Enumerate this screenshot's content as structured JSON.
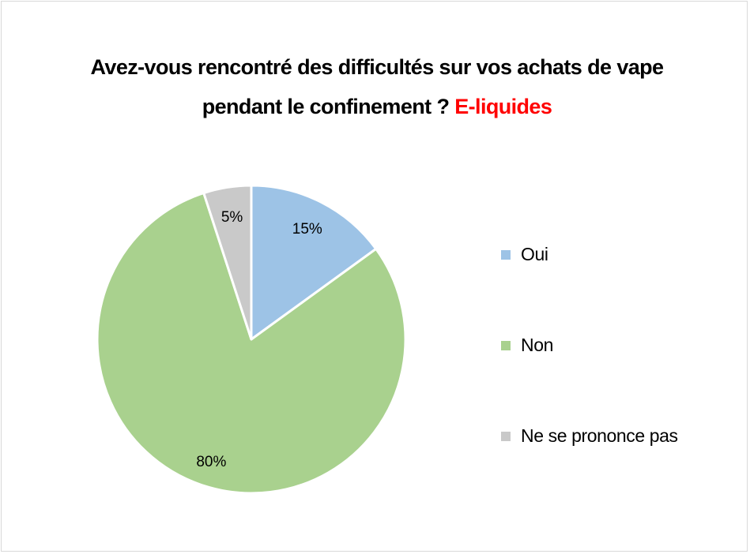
{
  "chart_data": {
    "type": "pie",
    "title": "Avez-vous rencontré des difficultés sur vos achats de vape pendant le confinement ?",
    "title_highlight": "E-liquides",
    "categories": [
      "Oui",
      "Non",
      "Ne se prononce pas"
    ],
    "values": [
      15,
      80,
      5
    ],
    "data_labels": [
      "15%",
      "80%",
      "5%"
    ],
    "colors": [
      "#9dc3e6",
      "#a9d18e",
      "#c9c9c9"
    ],
    "title_highlight_color": "#ff0000",
    "slice_border_color": "#ffffff",
    "start_angle_deg": 0,
    "direction": "clockwise",
    "legend_position": "right"
  }
}
